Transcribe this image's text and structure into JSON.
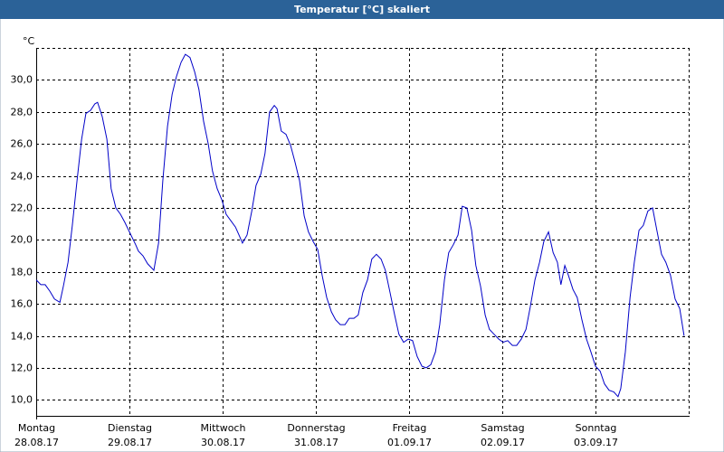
{
  "chart_data": {
    "type": "line",
    "title": "Temperatur [°C] skaliert",
    "y_unit": "°C",
    "xlim": [
      0,
      168
    ],
    "ylim": [
      9,
      32
    ],
    "xticks": [
      {
        "value": 0,
        "label": "Montag"
      },
      {
        "value": 24,
        "label": "Dienstag"
      },
      {
        "value": 48,
        "label": "Mittwoch"
      },
      {
        "value": 72,
        "label": "Donnerstag"
      },
      {
        "value": 96,
        "label": "Freitag"
      },
      {
        "value": 120,
        "label": "Samstag"
      },
      {
        "value": 144,
        "label": "Sonntag"
      }
    ],
    "xtick_dates": [
      "28.08.17",
      "29.08.17",
      "30.08.17",
      "31.08.17",
      "01.09.17",
      "02.09.17",
      "03.09.17"
    ],
    "yticks": [
      {
        "value": 10,
        "label": "10,0"
      },
      {
        "value": 12,
        "label": "12,0"
      },
      {
        "value": 14,
        "label": "14,0"
      },
      {
        "value": 16,
        "label": "16,0"
      },
      {
        "value": 18,
        "label": "18,0"
      },
      {
        "value": 20,
        "label": "20,0"
      },
      {
        "value": 22,
        "label": "22,0"
      },
      {
        "value": 24,
        "label": "24,0"
      },
      {
        "value": 26,
        "label": "26,0"
      },
      {
        "value": 28,
        "label": "28,0"
      },
      {
        "value": 30,
        "label": "30,0"
      }
    ],
    "grid": true,
    "x": [
      0,
      1.2,
      2.3,
      3.5,
      4.7,
      6.1,
      7.0,
      8.2,
      9.3,
      10.5,
      11.7,
      12.8,
      14.0,
      15.1,
      15.8,
      17.0,
      18.2,
      19.3,
      20.5,
      21.7,
      22.8,
      24.0,
      25.6,
      26.3,
      27.5,
      28.7,
      30.3,
      31.5,
      32.6,
      33.8,
      35.0,
      36.1,
      37.3,
      38.4,
      39.6,
      40.8,
      41.9,
      43.1,
      44.3,
      45.4,
      46.6,
      47.8,
      48.9,
      50.1,
      51.3,
      52.4,
      53.1,
      54.3,
      55.5,
      56.6,
      57.8,
      58.9,
      60.1,
      61.3,
      62.0,
      63.1,
      64.3,
      65.5,
      66.6,
      67.8,
      69.0,
      70.1,
      71.3,
      72.5,
      73.6,
      74.8,
      76.0,
      77.1,
      78.3,
      79.5,
      80.6,
      81.8,
      82.9,
      84.1,
      85.3,
      86.4,
      87.6,
      88.8,
      89.9,
      91.1,
      92.3,
      93.4,
      94.6,
      95.8,
      96.9,
      98.1,
      99.3,
      100.4,
      101.6,
      102.8,
      103.9,
      105.1,
      106.2,
      107.4,
      108.6,
      109.7,
      110.9,
      112.1,
      113.2,
      114.4,
      115.6,
      116.7,
      117.9,
      119.1,
      120.2,
      121.4,
      122.6,
      123.7,
      124.9,
      126.1,
      127.2,
      128.4,
      129.6,
      130.7,
      131.9,
      133.1,
      134.2,
      135.1,
      136.1,
      137.0,
      138.2,
      139.3,
      140.5,
      141.7,
      142.8,
      144.0,
      145.2,
      146.3,
      147.5,
      148.7,
      149.8,
      150.5,
      151.7,
      152.9,
      154.0,
      155.2,
      156.3,
      157.5,
      158.7,
      159.8,
      161.0,
      162.1,
      163.3,
      164.5,
      165.7,
      166.8
    ],
    "series": [
      {
        "name": "Temperatur",
        "color": "#0000c8",
        "values": [
          17.5,
          17.2,
          17.2,
          16.8,
          16.3,
          16.1,
          17.1,
          18.6,
          20.9,
          23.7,
          26.3,
          27.9,
          28.1,
          28.5,
          28.6,
          27.7,
          26.3,
          23.2,
          22.0,
          21.6,
          21.1,
          20.5,
          19.7,
          19.3,
          19.0,
          18.5,
          18.1,
          19.8,
          23.7,
          27.1,
          29.1,
          30.2,
          31.1,
          31.6,
          31.4,
          30.5,
          29.4,
          27.4,
          26.0,
          24.3,
          23.2,
          22.5,
          21.6,
          21.2,
          20.8,
          20.2,
          19.8,
          20.3,
          21.8,
          23.4,
          24.1,
          25.4,
          28.0,
          28.4,
          28.2,
          26.8,
          26.6,
          25.9,
          24.9,
          23.7,
          21.5,
          20.5,
          19.9,
          19.4,
          17.8,
          16.4,
          15.5,
          15.0,
          14.7,
          14.7,
          15.1,
          15.1,
          15.3,
          16.7,
          17.5,
          18.8,
          19.1,
          18.8,
          18.1,
          16.7,
          15.3,
          14.1,
          13.6,
          13.8,
          13.7,
          12.7,
          12.1,
          12.0,
          12.2,
          13.0,
          14.7,
          17.5,
          19.2,
          19.7,
          20.3,
          22.1,
          22.0,
          20.6,
          18.4,
          17.1,
          15.3,
          14.4,
          14.1,
          13.8,
          13.6,
          13.7,
          13.4,
          13.4,
          13.8,
          14.4,
          15.8,
          17.5,
          18.6,
          19.9,
          20.5,
          19.2,
          18.6,
          17.2,
          18.4,
          17.8,
          16.9,
          16.4,
          15.0,
          13.8,
          13.0,
          12.1,
          11.8,
          11.0,
          10.6,
          10.5,
          10.2,
          10.7,
          13.0,
          16.4,
          18.6,
          20.6,
          20.9,
          21.8,
          22.0,
          20.6,
          19.1,
          18.6,
          17.8,
          16.3,
          15.7,
          14.0
        ]
      }
    ]
  }
}
